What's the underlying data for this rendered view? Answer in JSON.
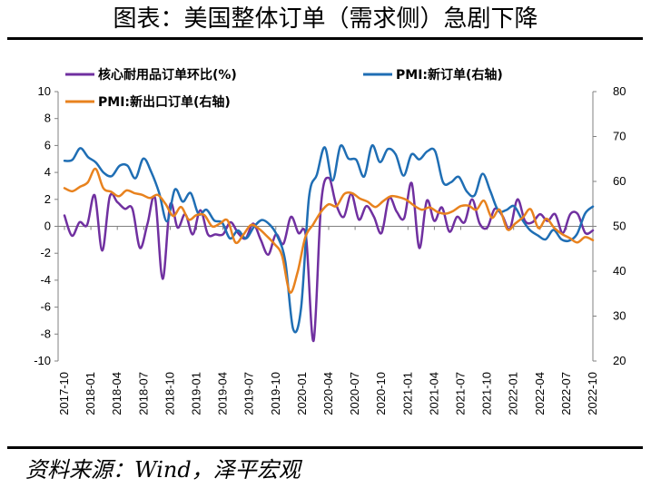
{
  "header": {
    "title": "图表：美国整体订单（需求侧）急剧下降"
  },
  "footer": {
    "source": "资料来源：Wind，泽平宏观"
  },
  "chart_data": {
    "type": "line",
    "left_axis": {
      "ylim": [
        -10,
        10
      ],
      "ticks": [
        10,
        8,
        6,
        4,
        2,
        0,
        -2,
        -4,
        -6,
        -8,
        -10
      ]
    },
    "right_axis": {
      "ylim": [
        20,
        80
      ],
      "ticks": [
        80,
        70,
        60,
        50,
        40,
        30,
        20
      ]
    },
    "x_ticks": [
      "2017-10",
      "2018-01",
      "2018-04",
      "2018-07",
      "2018-10",
      "2019-01",
      "2019-04",
      "2019-07",
      "2019-10",
      "2020-01",
      "2020-04",
      "2020-07",
      "2020-10",
      "2021-01",
      "2021-04",
      "2021-07",
      "2021-10",
      "2022-01",
      "2022-04",
      "2022-07",
      "2022-10"
    ],
    "series": [
      {
        "name": "核心耐用品订单环比(%)",
        "axis": "left",
        "color": "#7030a0",
        "values": [
          0.8,
          -0.7,
          0.3,
          0.1,
          2.3,
          -1.8,
          2.2,
          1.8,
          1.3,
          1.3,
          -1.6,
          0.2,
          2.1,
          -3.9,
          1.6,
          -0.1,
          0.9,
          -0.6,
          1.2,
          -0.6,
          -0.6,
          -0.6,
          0.3,
          -0.5,
          -0.9,
          0.2,
          -1.0,
          -2.1,
          -0.6,
          -1.3,
          0.7,
          -0.5,
          -0.8,
          -8.5,
          1.7,
          3.6,
          1.6,
          0.7,
          2.4,
          0.5,
          1.5,
          0.7,
          -0.5,
          2.1,
          1.1,
          0.6,
          3.2,
          -1.6,
          1.9,
          0.4,
          1.4,
          -0.4,
          0.7,
          0.3,
          2.0,
          0.2,
          -0.1,
          1.3,
          0.8,
          -0.2,
          2.0,
          0.4,
          0.3,
          0.9,
          0.4,
          0.9,
          -0.5,
          0.9,
          0.9,
          -0.5,
          -0.3
        ]
      },
      {
        "name": "PMI:新订单(右轴)",
        "axis": "right",
        "color": "#1f6eb4",
        "values": [
          64.6,
          64.8,
          67.4,
          65.4,
          64.2,
          61.9,
          61.2,
          63.5,
          63.5,
          60.7,
          65.1,
          62.1,
          57.5,
          51.1,
          58.2,
          55.5,
          57.4,
          52.7,
          53.7,
          51.3,
          50.8,
          47.3,
          49.1,
          47.3,
          49.8,
          51.4,
          50.4,
          47.8,
          42.2,
          27.1,
          31.8,
          56.4,
          61.5,
          67.6,
          60.2,
          67.9,
          65.1,
          64.8,
          61.1,
          68.0,
          64.3,
          67.2,
          66.0,
          61.3,
          66.0,
          64.9,
          66.7,
          66.7,
          59.8,
          59.8,
          61.0,
          57.8,
          56.9,
          61.7,
          57.8,
          53.5,
          53.6,
          54.5,
          51.6,
          49.2,
          48.0,
          47.1,
          49.2,
          47.1,
          46.8,
          48.3,
          52.8,
          54.4
        ]
      },
      {
        "name": "PMI:新出口订单(右轴)",
        "axis": "right",
        "color": "#e8821e",
        "values": [
          58.5,
          57.8,
          58.8,
          59.8,
          62.8,
          58.5,
          57.7,
          56.7,
          58.0,
          57.4,
          57.0,
          56.3,
          57.0,
          55.0,
          52.3,
          54.3,
          51.5,
          52.5,
          52.5,
          50.0,
          50.6,
          51.3,
          46.4,
          48.1,
          50.3,
          49.5,
          47.9,
          46.1,
          43.5,
          35.3,
          39.8,
          47.6,
          50.4,
          53.2,
          54.9,
          54.5,
          57.2,
          57.4,
          56.2,
          55.5,
          54.3,
          55.6,
          56.7,
          56.5,
          55.9,
          54.6,
          53.7,
          54.2,
          53.2,
          52.8,
          53.4,
          54.5,
          54.6,
          53.7,
          55.7,
          51.9,
          53.7,
          49.3,
          50.6,
          52.0,
          53.8,
          49.6,
          51.7,
          49.7,
          48.3,
          47.4,
          46.4,
          47.6,
          46.9
        ]
      }
    ],
    "legend": [
      {
        "label": "核心耐用品订单环比(%)",
        "color": "#7030a0"
      },
      {
        "label": "PMI:新订单(右轴)",
        "color": "#1f6eb4"
      },
      {
        "label": "PMI:新出口订单(右轴)",
        "color": "#e8821e"
      }
    ],
    "legend_position": "top",
    "grid": false
  }
}
